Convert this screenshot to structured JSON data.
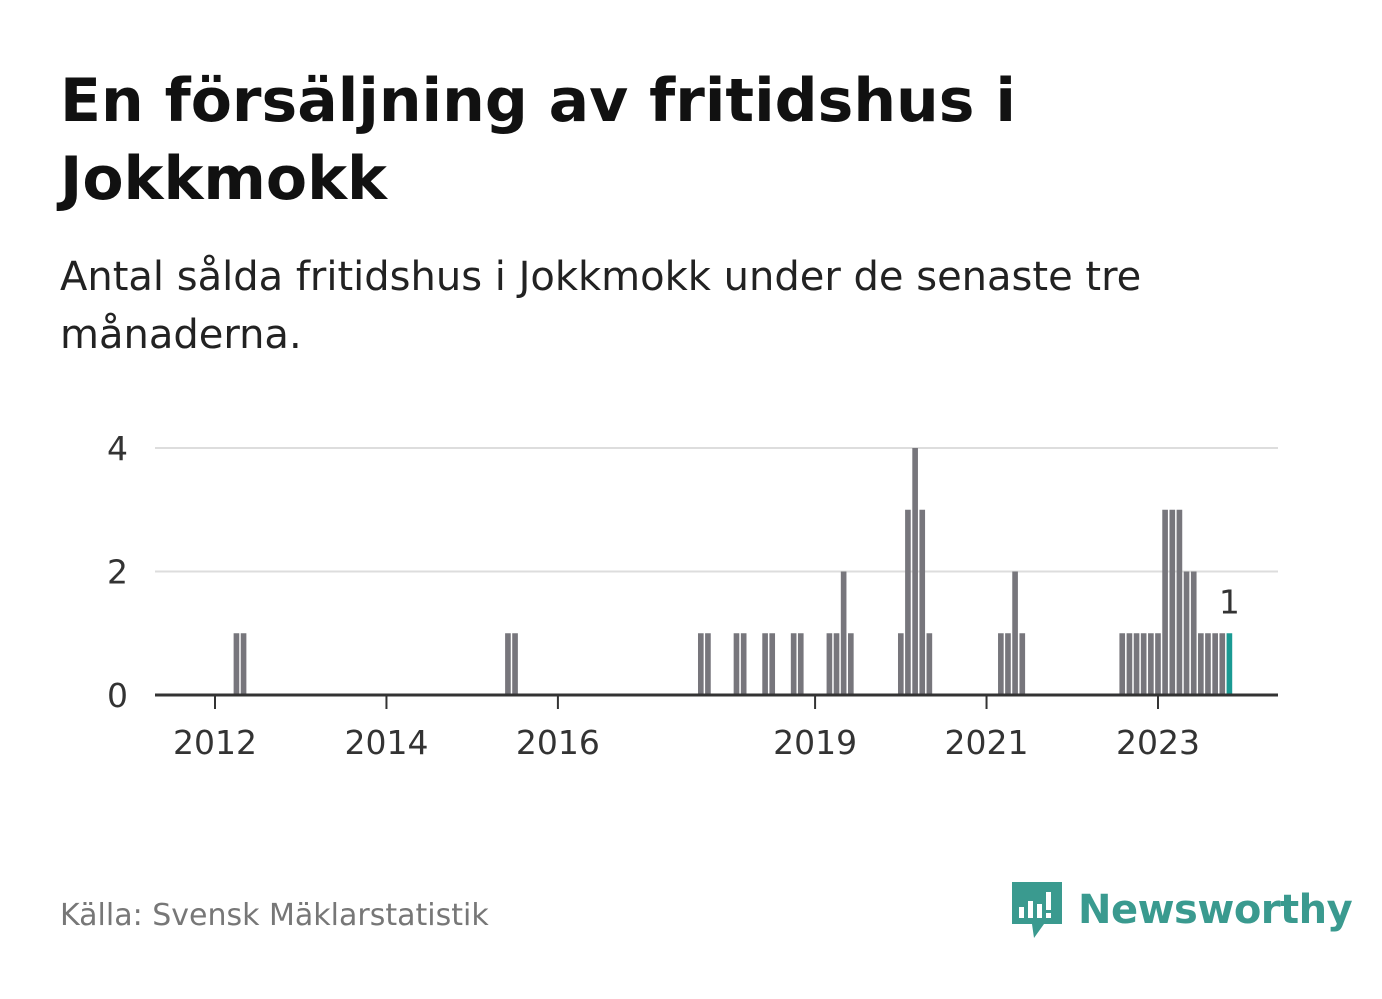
{
  "title": "En försäljning av fritidshus i Jokkmokk",
  "subtitle": "Antal sålda fritidshus i Jokkmokk under de senaste tre månaderna.",
  "source": "Källa: Svensk Mäklarstatistik",
  "brand": {
    "name": "Newsworthy",
    "icon": "newsworthy-logo-icon"
  },
  "colors": {
    "bar": "#77767c",
    "highlight": "#1a9a93",
    "brand": "#3a9a8f",
    "grid": "#dddddd",
    "axis": "#333333"
  },
  "chart_data": {
    "type": "bar",
    "title": "En försäljning av fritidshus i Jokkmokk",
    "xlabel": "",
    "ylabel": "",
    "ylim": [
      0,
      4
    ],
    "yticks": [
      0,
      2,
      4
    ],
    "x_domain": [
      2011.3,
      2024.4
    ],
    "xticks": [
      {
        "value": 2012,
        "label": "2012"
      },
      {
        "value": 2014,
        "label": "2014"
      },
      {
        "value": 2016,
        "label": "2016"
      },
      {
        "value": 2019,
        "label": "2019"
      },
      {
        "value": 2021,
        "label": "2021"
      },
      {
        "value": 2023,
        "label": "2023"
      }
    ],
    "period_width": 0.0833,
    "x": [
      2012.25,
      2012.333,
      2015.417,
      2015.5,
      2017.667,
      2017.75,
      2018.083,
      2018.167,
      2018.417,
      2018.5,
      2018.75,
      2018.833,
      2019.167,
      2019.25,
      2019.333,
      2019.417,
      2020.0,
      2020.083,
      2020.167,
      2020.25,
      2020.333,
      2021.167,
      2021.25,
      2021.333,
      2021.417,
      2022.583,
      2022.667,
      2022.75,
      2022.833,
      2022.917,
      2023.0,
      2023.083,
      2023.167,
      2023.25,
      2023.333,
      2023.417,
      2023.5,
      2023.583,
      2023.667,
      2023.75,
      2023.833
    ],
    "values": [
      1,
      1,
      1,
      1,
      1,
      1,
      1,
      1,
      1,
      1,
      1,
      1,
      1,
      1,
      2,
      1,
      1,
      3,
      4,
      3,
      1,
      1,
      1,
      2,
      1,
      1,
      1,
      1,
      1,
      1,
      1,
      3,
      3,
      3,
      2,
      2,
      1,
      1,
      1,
      1,
      1
    ],
    "highlight_last": true,
    "last_label": "1"
  }
}
